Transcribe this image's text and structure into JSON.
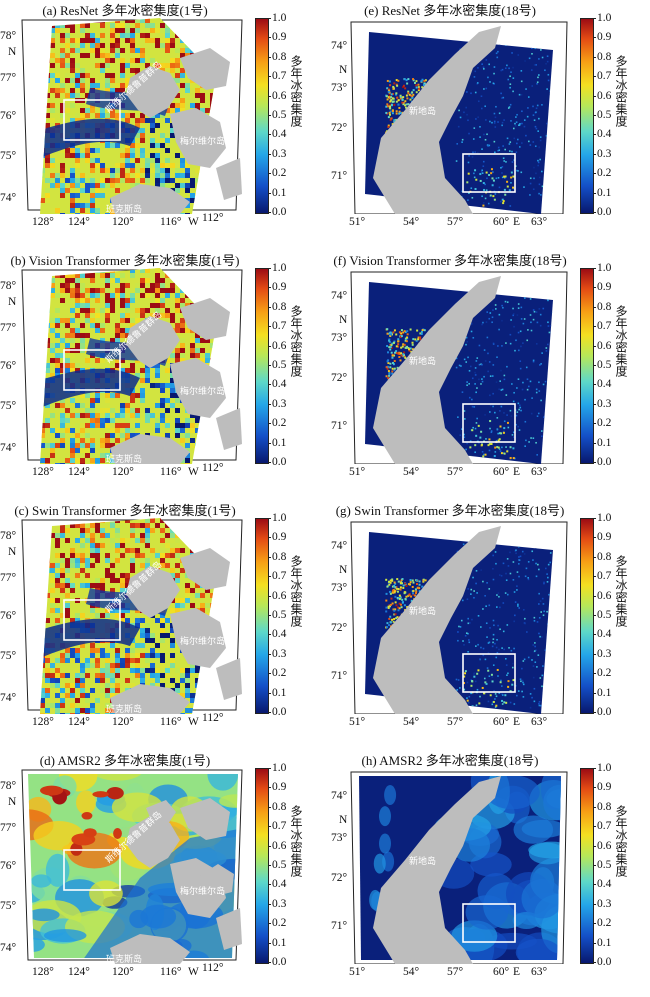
{
  "colorbar": {
    "label": "多年冰密集度",
    "ticks": [
      "1.0",
      "0.9",
      "0.8",
      "0.7",
      "0.6",
      "0.5",
      "0.4",
      "0.3",
      "0.2",
      "0.1",
      "0.0"
    ]
  },
  "panels": [
    {
      "id": "a",
      "title": "(a) ResNet 多年冰密集度(1号)",
      "region": "laptev",
      "style": "model"
    },
    {
      "id": "e",
      "title": "(e) ResNet 多年冰密集度(18号)",
      "region": "kara",
      "style": "kara"
    },
    {
      "id": "b",
      "title": "(b) Vision Transformer 多年冰密集度(1号)",
      "region": "laptev",
      "style": "model"
    },
    {
      "id": "f",
      "title": "(f) Vision Transformer 多年冰密集度(18号)",
      "region": "kara",
      "style": "kara"
    },
    {
      "id": "c",
      "title": "(c) Swin Transformer 多年冰密集度(1号)",
      "region": "laptev",
      "style": "model"
    },
    {
      "id": "g",
      "title": "(g) Swin Transformer 多年冰密集度(18号)",
      "region": "kara",
      "style": "kara"
    },
    {
      "id": "d",
      "title": "(d) AMSR2 多年冰密集度(1号)",
      "region": "laptev",
      "style": "amsr"
    },
    {
      "id": "h",
      "title": "(h) AMSR2 多年冰密集度(18号)",
      "region": "kara",
      "style": "amsr-kara"
    }
  ],
  "laptev": {
    "lat_labels": [
      "78°",
      "N",
      "77°",
      "76°",
      "75°",
      "74°"
    ],
    "lon_labels": [
      "128°",
      "124°",
      "120°",
      "116°",
      "W",
      "112°"
    ],
    "islands": [
      "斯维尔德鲁普群岛",
      "梅尔维尔岛",
      "班克斯岛"
    ]
  },
  "kara": {
    "lat_labels": [
      "74°",
      "N",
      "73°",
      "72°",
      "71°"
    ],
    "lon_labels": [
      "51°",
      "54°",
      "57°",
      "60°",
      "E",
      "63°"
    ],
    "islands": [
      "新地岛"
    ]
  }
}
